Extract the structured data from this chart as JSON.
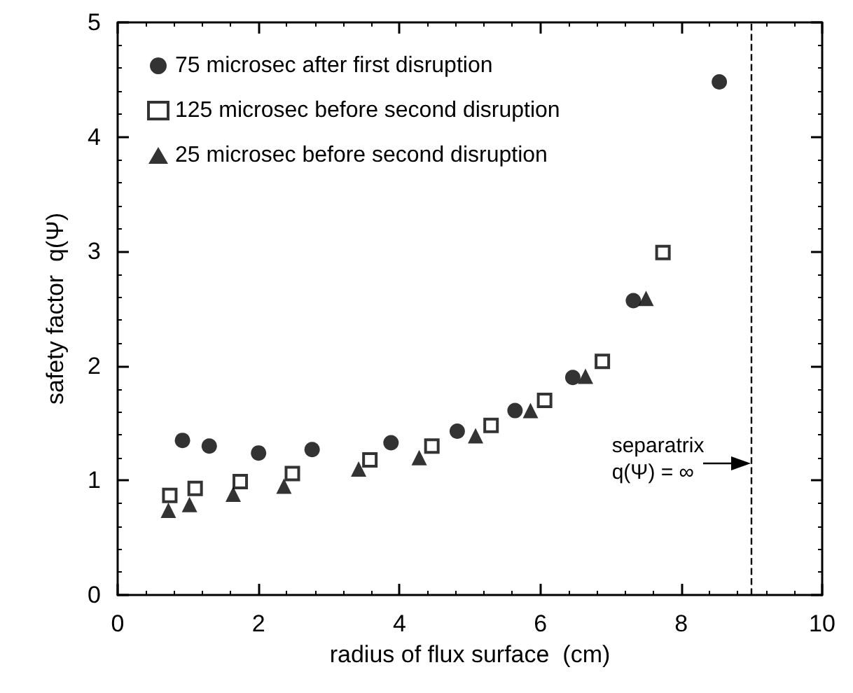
{
  "chart_data": {
    "type": "scatter",
    "xlabel": "radius of flux surface  (cm)",
    "ylabel": "safety factor  q(Ψ)",
    "xlim": [
      0,
      10
    ],
    "xticks": [
      0,
      2,
      4,
      6,
      8,
      10
    ],
    "ylim": [
      0,
      5
    ],
    "yticks": [
      0,
      1,
      2,
      3,
      4,
      5
    ],
    "grid": false,
    "legend": "top left",
    "series": [
      {
        "name": "75 microsec after first disruption",
        "color": "#000000",
        "marker": "circle",
        "x": [
          0.92,
          1.3,
          2.0,
          2.76,
          3.88,
          4.82,
          5.64,
          6.46,
          7.32,
          8.54
        ],
        "values": [
          1.35,
          1.3,
          1.24,
          1.27,
          1.33,
          1.43,
          1.61,
          1.9,
          2.57,
          4.48
        ]
      },
      {
        "name": "125 microsec before second disruption",
        "color": "#000000",
        "marker": "square",
        "x": [
          0.74,
          1.1,
          1.74,
          2.48,
          3.58,
          4.46,
          5.3,
          6.06,
          6.88,
          7.74
        ],
        "values": [
          0.87,
          0.93,
          0.99,
          1.06,
          1.18,
          1.3,
          1.48,
          1.7,
          2.04,
          2.99
        ]
      },
      {
        "name": "25 microsec before second disruption",
        "color": "#000000",
        "marker": "triangle",
        "x": [
          0.72,
          1.02,
          1.64,
          2.36,
          3.42,
          4.28,
          5.08,
          5.86,
          6.64,
          7.5
        ],
        "values": [
          0.74,
          0.79,
          0.88,
          0.95,
          1.1,
          1.2,
          1.39,
          1.61,
          1.91,
          2.59
        ]
      }
    ],
    "ref_lines": [
      {
        "axis": "x",
        "value": 9,
        "label": "separatrix\nq(Ψ) = ∞",
        "line_style": "dashed",
        "color": "#000000"
      }
    ]
  }
}
